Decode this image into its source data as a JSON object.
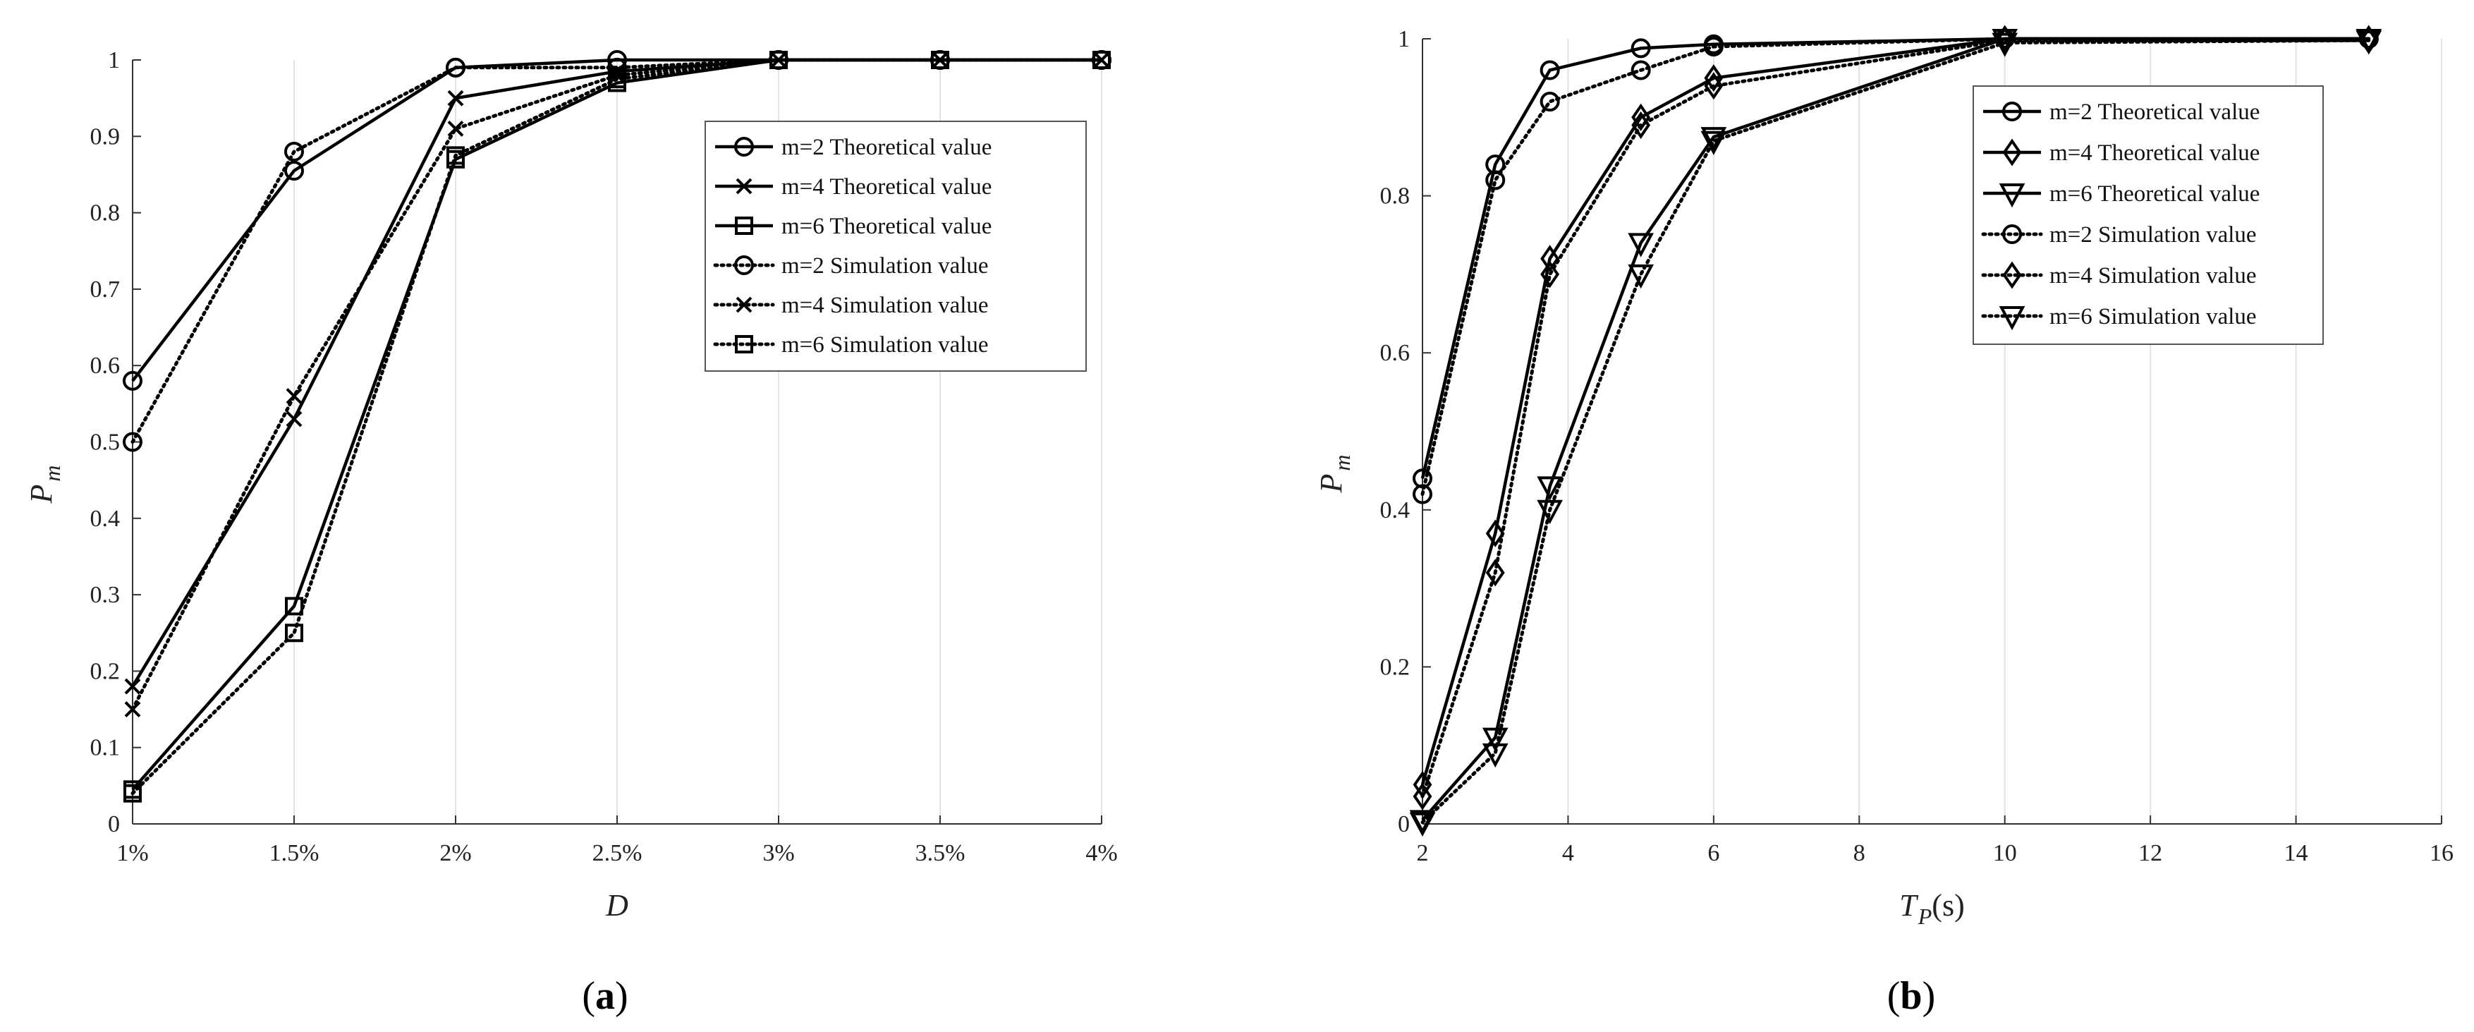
{
  "chart_data": [
    {
      "type": "line",
      "panel_label": "a",
      "xlabel": "D",
      "ylabel": "P",
      "ylabel_sub": "m",
      "categories": [
        "1%",
        "1.5%",
        "2%",
        "2.5%",
        "3%",
        "3.5%",
        "4%"
      ],
      "yticks": [
        "0",
        "0.1",
        "0.2",
        "0.3",
        "0.4",
        "0.5",
        "0.6",
        "0.7",
        "0.8",
        "0.9",
        "1"
      ],
      "ylim": [
        0,
        1
      ],
      "grid": "vertical",
      "legend_position": "right",
      "series": [
        {
          "name": "m=2 Theoretical value",
          "style": "solid",
          "marker": "circle",
          "values": [
            0.58,
            0.855,
            0.99,
            1.0,
            1.0,
            1.0,
            1.0
          ]
        },
        {
          "name": "m=4 Theoretical value",
          "style": "solid",
          "marker": "x",
          "values": [
            0.18,
            0.53,
            0.95,
            0.985,
            1.0,
            1.0,
            1.0
          ]
        },
        {
          "name": "m=6 Theoretical value",
          "style": "solid",
          "marker": "square",
          "values": [
            0.045,
            0.285,
            0.87,
            0.97,
            1.0,
            1.0,
            1.0
          ]
        },
        {
          "name": "m=2 Simulation value",
          "style": "dotted",
          "marker": "circle",
          "values": [
            0.5,
            0.88,
            0.99,
            0.99,
            1.0,
            1.0,
            1.0
          ]
        },
        {
          "name": "m=4 Simulation value",
          "style": "dotted",
          "marker": "x",
          "values": [
            0.15,
            0.56,
            0.91,
            0.98,
            1.0,
            1.0,
            1.0
          ]
        },
        {
          "name": "m=6 Simulation value",
          "style": "dotted",
          "marker": "square",
          "values": [
            0.04,
            0.25,
            0.875,
            0.975,
            1.0,
            1.0,
            1.0
          ]
        }
      ]
    },
    {
      "type": "line",
      "panel_label": "b",
      "xlabel": "T",
      "xlabel_sub": "P",
      "xlabel_unit": "(s)",
      "ylabel": "P",
      "ylabel_sub": "m",
      "xlim": [
        2,
        16
      ],
      "xticks": [
        2,
        4,
        6,
        8,
        10,
        12,
        14,
        16
      ],
      "ylim": [
        0,
        1
      ],
      "yticks": [
        0,
        0.2,
        0.4,
        0.6,
        0.8,
        1
      ],
      "grid": "vertical",
      "legend_position": "top-right",
      "x": [
        2,
        3,
        3.75,
        5,
        6,
        10,
        15
      ],
      "series": [
        {
          "name": "m=2 Theoretical value",
          "style": "solid",
          "marker": "circle",
          "values": [
            0.44,
            0.84,
            0.96,
            0.988,
            0.993,
            1.0,
            1.0
          ]
        },
        {
          "name": "m=4 Theoretical value",
          "style": "solid",
          "marker": "diamond",
          "values": [
            0.05,
            0.37,
            0.72,
            0.9,
            0.95,
            1.0,
            1.0
          ]
        },
        {
          "name": "m=6 Theoretical value",
          "style": "solid",
          "marker": "triangle-down",
          "values": [
            0.005,
            0.11,
            0.43,
            0.74,
            0.875,
            1.0,
            1.0
          ]
        },
        {
          "name": "m=2 Simulation value",
          "style": "dotted",
          "marker": "circle",
          "values": [
            0.42,
            0.82,
            0.92,
            0.96,
            0.99,
            1.0,
            1.0
          ]
        },
        {
          "name": "m=4 Simulation value",
          "style": "dotted",
          "marker": "diamond",
          "values": [
            0.035,
            0.32,
            0.7,
            0.89,
            0.94,
            0.998,
            0.998
          ]
        },
        {
          "name": "m=6 Simulation value",
          "style": "dotted",
          "marker": "triangle-down",
          "values": [
            0.002,
            0.09,
            0.4,
            0.7,
            0.87,
            0.995,
            0.998
          ]
        }
      ]
    }
  ]
}
